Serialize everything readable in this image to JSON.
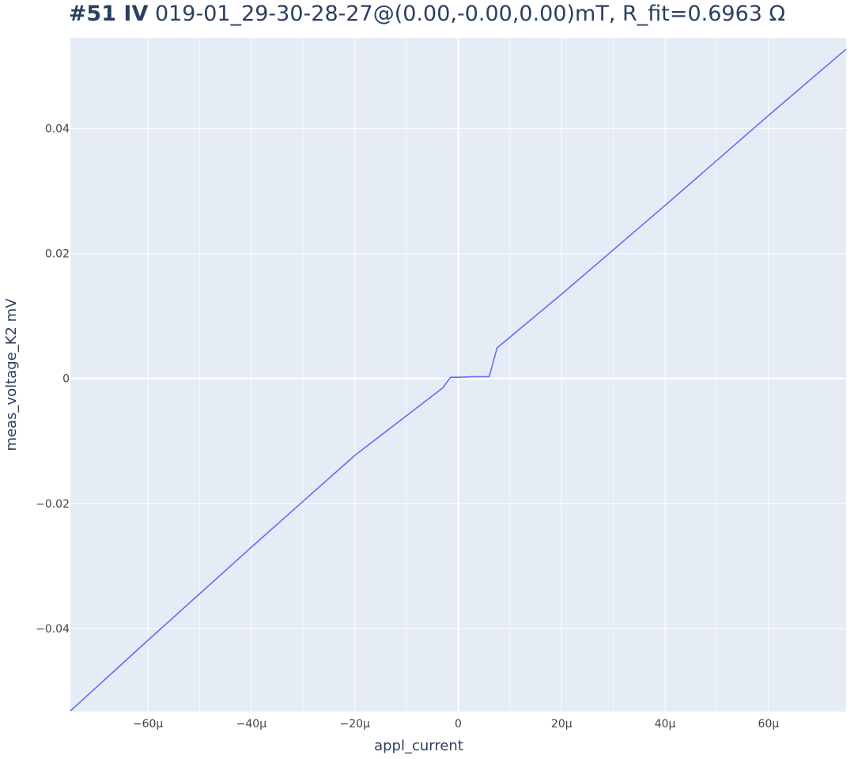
{
  "title": {
    "bold": "#51 IV",
    "rest": " 019-01_29-30-28-27@(0.00,-0.00,0.00)mT, R_fit=0.6963 Ω"
  },
  "colors": {
    "plot_bg": "#e5ecf6",
    "grid": "#ffffff",
    "line": "#636efa",
    "text": "#2a3f5f"
  },
  "chart_data": {
    "type": "line",
    "title": "#51 IV 019-01_29-30-28-27@(0.00,-0.00,0.00)mT, R_fit=0.6963 Ω",
    "xlabel": "appl_current",
    "ylabel": "meas_voltage_K2 mV",
    "xlim": [
      -7.5e-05,
      7.5e-05
    ],
    "ylim": [
      -0.0533,
      0.0545
    ],
    "grid": true,
    "x_ticks": [
      {
        "value": -6e-05,
        "label": "−60µ"
      },
      {
        "value": -4e-05,
        "label": "−40µ"
      },
      {
        "value": -2e-05,
        "label": "−20µ"
      },
      {
        "value": 0,
        "label": "0"
      },
      {
        "value": 2e-05,
        "label": "20µ"
      },
      {
        "value": 4e-05,
        "label": "40µ"
      },
      {
        "value": 6e-05,
        "label": "60µ"
      }
    ],
    "y_ticks": [
      {
        "value": 0.04,
        "label": "0.04"
      },
      {
        "value": 0.02,
        "label": "0.02"
      },
      {
        "value": 0,
        "label": "0"
      },
      {
        "value": -0.02,
        "label": "−0.02"
      },
      {
        "value": -0.04,
        "label": "−0.04"
      }
    ],
    "series": [
      {
        "x": [
          -7.5e-05,
          -6e-05,
          -4e-05,
          -2e-05,
          -3e-06,
          -1.5e-06,
          0,
          3e-06,
          6e-06,
          7.5e-06,
          2e-05,
          4e-05,
          6e-05,
          7.5e-05
        ],
        "y": [
          -0.0532,
          -0.0419,
          -0.027,
          -0.0123,
          -0.0015,
          0.0002,
          0.0002,
          0.0003,
          0.0003,
          0.0049,
          0.0135,
          0.0277,
          0.0421,
          0.0527
        ]
      }
    ]
  }
}
